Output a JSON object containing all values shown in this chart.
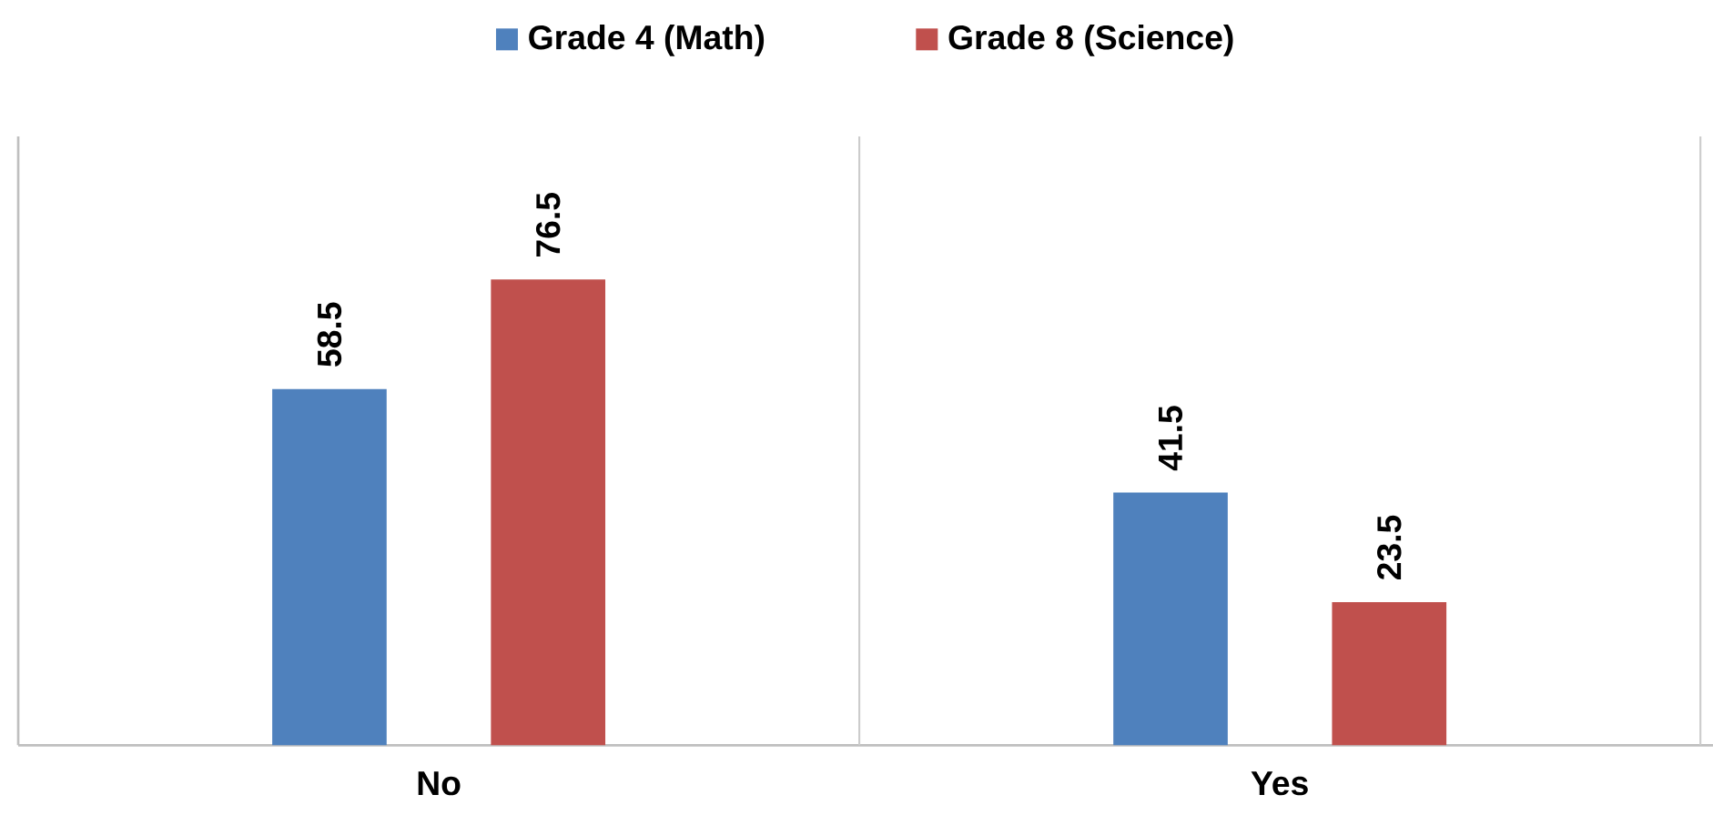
{
  "chart_data": {
    "type": "bar",
    "categories": [
      "No",
      "Yes"
    ],
    "series": [
      {
        "name": "Grade 4 (Math)",
        "color": "#4f81bd",
        "values": [
          58.5,
          41.5
        ]
      },
      {
        "name": "Grade 8 (Science)",
        "color": "#c0504d",
        "values": [
          76.5,
          23.5
        ]
      }
    ],
    "ylim": [
      0,
      100
    ],
    "data_labels": true,
    "legend": "top",
    "grid": "x"
  }
}
